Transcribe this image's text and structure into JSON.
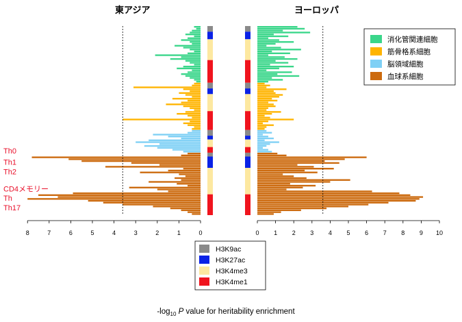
{
  "chart_data": {
    "type": "bar",
    "orientation": "horizontal",
    "panels": [
      {
        "title": "東アジア",
        "xlim": [
          8,
          0
        ],
        "threshold": 3.6,
        "ticks": [
          "8",
          "7",
          "6",
          "5",
          "4",
          "3",
          "2",
          "1",
          "0"
        ]
      },
      {
        "title": "ヨーロッパ",
        "xlim": [
          0,
          10
        ],
        "threshold": 3.6,
        "ticks": [
          "0",
          "1",
          "2",
          "3",
          "4",
          "5",
          "6",
          "7",
          "8",
          "9",
          "10"
        ]
      }
    ],
    "xlabel": {
      "prefix": "-log",
      "sub": "10",
      "italic": "P",
      "rest": " value for heritability enrichment"
    },
    "cell_labels": [
      "Th0",
      "Th1",
      "Th2",
      "CD4メモリー",
      "Th",
      "Th17"
    ],
    "cell_label_rows": [
      66,
      72,
      77,
      86,
      91,
      96
    ],
    "tissue_legend": [
      {
        "label": "消化管関連細胞",
        "color": "#3ad68a"
      },
      {
        "label": "筋骨格系細胞",
        "color": "#ffb400"
      },
      {
        "label": "脳領域細胞",
        "color": "#7fd0f5"
      },
      {
        "label": "血球系細胞",
        "color": "#cc6a0e"
      }
    ],
    "mark_legend": [
      {
        "label": "H3K9ac",
        "color": "#8a8a8a"
      },
      {
        "label": "H3K27ac",
        "color": "#0a22e6"
      },
      {
        "label": "H3K4me3",
        "color": "#fde8a0"
      },
      {
        "label": "H3K4me1",
        "color": "#f0141e"
      }
    ],
    "groups": [
      {
        "tissue": 0,
        "count": 30
      },
      {
        "tissue": 1,
        "count": 25
      },
      {
        "tissue": 2,
        "count": 12
      },
      {
        "tissue": 3,
        "count": 33
      }
    ],
    "mark_strip": [
      {
        "mark": 0,
        "count": 3
      },
      {
        "mark": 1,
        "count": 4
      },
      {
        "mark": 2,
        "count": 11
      },
      {
        "mark": 3,
        "count": 12
      },
      {
        "mark": 0,
        "count": 3
      },
      {
        "mark": 1,
        "count": 3
      },
      {
        "mark": 2,
        "count": 9
      },
      {
        "mark": 3,
        "count": 10
      },
      {
        "mark": 0,
        "count": 3
      },
      {
        "mark": 1,
        "count": 2
      },
      {
        "mark": 2,
        "count": 4
      },
      {
        "mark": 3,
        "count": 3
      },
      {
        "mark": 0,
        "count": 2
      },
      {
        "mark": 1,
        "count": 6
      },
      {
        "mark": 2,
        "count": 14
      },
      {
        "mark": 3,
        "count": 11
      }
    ],
    "east_asia": [
      0.3,
      0.2,
      0.4,
      0.5,
      0.7,
      0.3,
      0.6,
      0.9,
      0.5,
      0.4,
      1.2,
      0.8,
      0.5,
      0.3,
      0.6,
      2.1,
      0.9,
      1.4,
      0.7,
      0.5,
      0.3,
      0.8,
      1.1,
      0.4,
      0.6,
      0.9,
      0.7,
      0.5,
      0.3,
      0.2,
      0.3,
      0.4,
      3.1,
      0.8,
      0.5,
      1.0,
      0.7,
      0.4,
      1.3,
      0.6,
      0.9,
      1.6,
      0.8,
      0.5,
      0.3,
      0.7,
      1.1,
      0.6,
      0.4,
      3.6,
      0.5,
      0.8,
      0.6,
      0.3,
      0.4,
      0.4,
      0.6,
      2.2,
      1.5,
      0.9,
      2.4,
      3.0,
      1.9,
      2.6,
      2.0,
      1.3,
      0.8,
      0.6,
      0.9,
      7.8,
      6.1,
      5.5,
      3.2,
      1.9,
      4.4,
      0.8,
      1.5,
      2.8,
      1.0,
      0.7,
      1.2,
      0.9,
      2.4,
      1.1,
      0.6,
      3.3,
      2.0,
      1.5,
      5.9,
      7.5,
      6.6,
      8.0,
      5.2,
      4.5,
      3.6,
      2.2,
      1.4,
      0.9,
      0.6,
      0.4
    ],
    "europe": [
      2.2,
      2.6,
      1.4,
      2.9,
      0.9,
      1.7,
      0.6,
      1.2,
      2.0,
      1.0,
      0.5,
      1.3,
      2.4,
      0.8,
      1.8,
      0.6,
      1.5,
      2.2,
      1.0,
      1.7,
      0.7,
      2.0,
      1.2,
      0.5,
      1.9,
      1.1,
      2.3,
      0.8,
      1.4,
      0.6,
      0.4,
      0.7,
      0.5,
      1.6,
      0.9,
      1.0,
      1.4,
      1.2,
      0.8,
      1.1,
      0.6,
      0.9,
      1.0,
      0.6,
      0.5,
      1.3,
      0.8,
      0.4,
      0.7,
      2.0,
      0.6,
      0.3,
      0.9,
      0.5,
      0.4,
      0.5,
      0.8,
      0.3,
      0.6,
      0.9,
      0.4,
      1.2,
      0.7,
      0.5,
      0.3,
      0.6,
      0.8,
      1.1,
      1.6,
      6.0,
      4.8,
      3.7,
      4.5,
      2.2,
      3.1,
      4.2,
      2.6,
      3.3,
      1.4,
      2.0,
      2.7,
      5.1,
      4.0,
      1.8,
      3.2,
      2.5,
      1.6,
      6.3,
      7.8,
      8.4,
      9.1,
      8.9,
      8.7,
      7.2,
      6.1,
      5.0,
      3.8,
      2.4,
      1.3,
      0.9
    ]
  }
}
